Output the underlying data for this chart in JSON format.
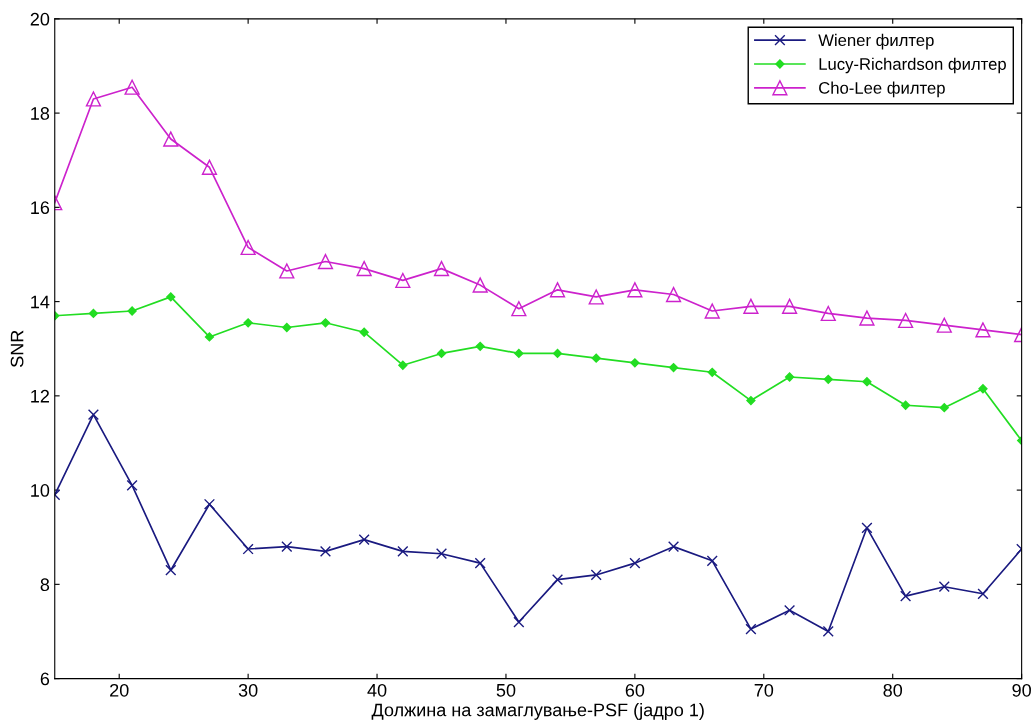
{
  "chart_data": {
    "type": "line",
    "xlabel": "Должина на замаглување-PSF (јадро 1)",
    "ylabel": "SNR",
    "x": [
      15,
      18,
      21,
      24,
      27,
      30,
      33,
      36,
      39,
      42,
      45,
      48,
      51,
      54,
      57,
      60,
      63,
      66,
      69,
      72,
      75,
      78,
      81,
      84,
      87,
      90
    ],
    "series": [
      {
        "name": "Wiener филтер",
        "color": "#1a1a80",
        "marker": "cross",
        "values": [
          9.9,
          11.6,
          10.1,
          8.3,
          9.7,
          8.75,
          8.8,
          8.7,
          8.95,
          8.7,
          8.65,
          8.45,
          7.2,
          8.1,
          8.2,
          8.45,
          8.8,
          8.5,
          7.05,
          7.45,
          7.0,
          9.2,
          7.75,
          7.95,
          7.8,
          8.75
        ]
      },
      {
        "name": "Lucy-Richardson филтер",
        "color": "#22dd22",
        "marker": "diamond",
        "values": [
          13.7,
          13.75,
          13.8,
          14.1,
          13.25,
          13.55,
          13.45,
          13.55,
          13.35,
          12.65,
          12.9,
          13.05,
          12.9,
          12.9,
          12.8,
          12.7,
          12.6,
          12.5,
          11.9,
          12.4,
          12.35,
          12.3,
          11.8,
          11.75,
          12.15,
          11.05
        ]
      },
      {
        "name": "Cho-Lee филтер",
        "color": "#cc22cc",
        "marker": "triangle",
        "values": [
          16.1,
          18.3,
          18.55,
          17.45,
          16.85,
          15.15,
          14.65,
          14.85,
          14.7,
          14.45,
          14.7,
          14.35,
          13.85,
          14.25,
          14.1,
          14.25,
          14.15,
          13.8,
          13.9,
          13.9,
          13.75,
          13.65,
          13.6,
          13.5,
          13.4,
          13.3
        ]
      }
    ],
    "xlim": [
      15,
      90
    ],
    "xticks": [
      20,
      30,
      40,
      50,
      60,
      70,
      80,
      90
    ],
    "ylim": [
      6,
      20
    ],
    "yticks": [
      6,
      8,
      10,
      12,
      14,
      16,
      18,
      20
    ],
    "grid": false,
    "legend": "top right",
    "line_style": "solid"
  }
}
